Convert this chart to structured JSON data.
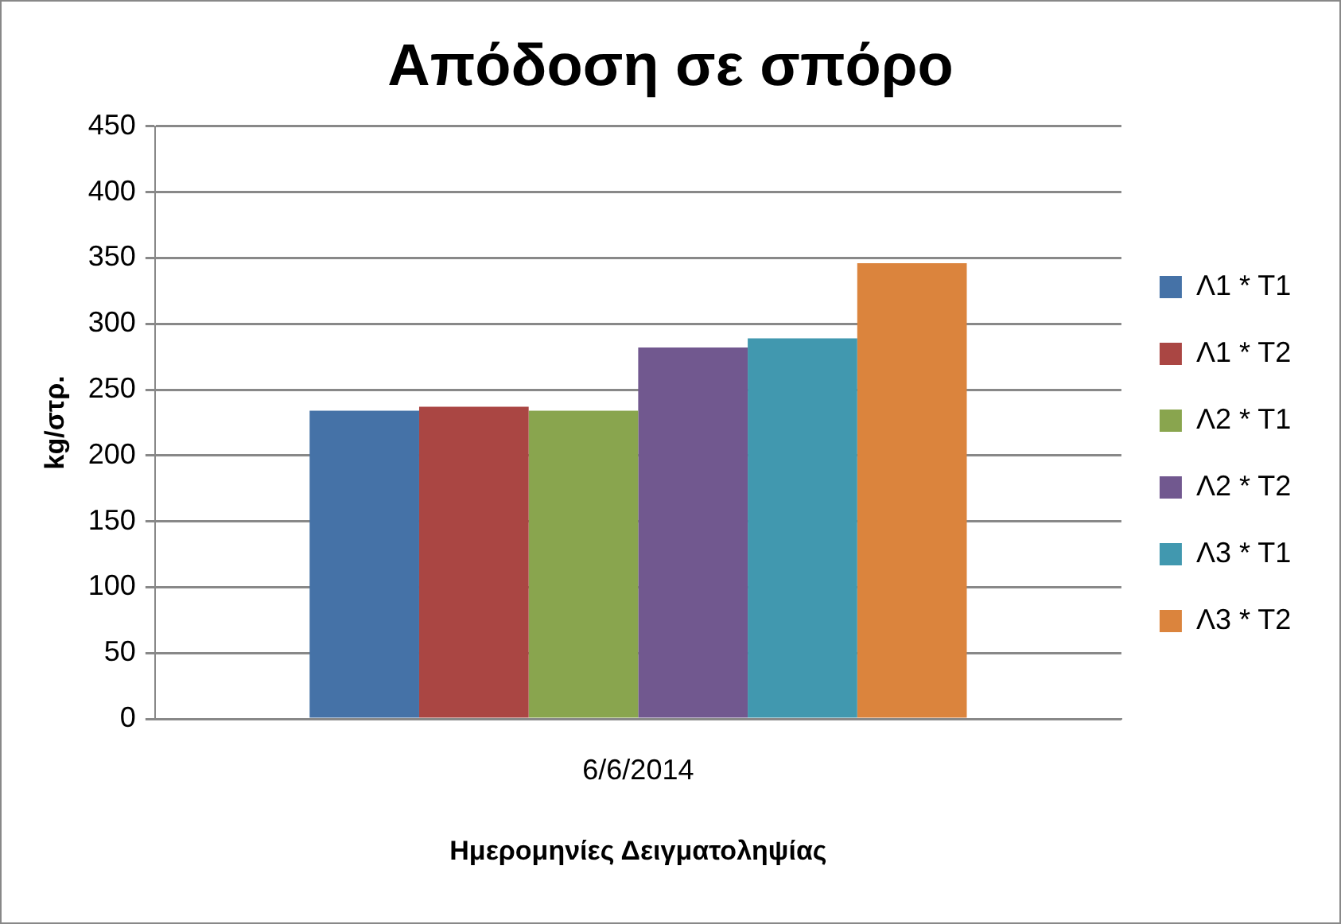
{
  "chart_data": {
    "type": "bar",
    "title": "Απόδοση σε σπόρο",
    "xlabel": "Ημερομηνίες Δειγματοληψίας",
    "ylabel": "kg/στρ.",
    "categories": [
      "6/6/2014"
    ],
    "series": [
      {
        "name": "Λ1 * Τ1",
        "color": "#4572a7",
        "values": [
          234
        ]
      },
      {
        "name": "Λ1 * Τ2",
        "color": "#aa4643",
        "values": [
          237
        ]
      },
      {
        "name": "Λ2 * Τ1",
        "color": "#89a54e",
        "values": [
          234
        ]
      },
      {
        "name": "Λ2 * Τ2",
        "color": "#71588f",
        "values": [
          282
        ]
      },
      {
        "name": "Λ3 * Τ1",
        "color": "#4198af",
        "values": [
          289
        ]
      },
      {
        "name": "Λ3 * Τ2",
        "color": "#db843d",
        "values": [
          346
        ]
      }
    ],
    "ylim": [
      0,
      450
    ],
    "yticks": [
      0,
      50,
      100,
      150,
      200,
      250,
      300,
      350,
      400,
      450
    ],
    "grid": "y",
    "legend": "right"
  }
}
